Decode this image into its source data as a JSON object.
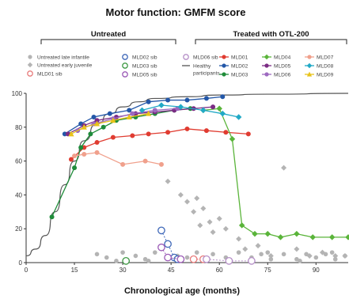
{
  "chart_data": {
    "type": "line",
    "title": "Motor function: GMFM score",
    "xlabel": "Chronological age (months)",
    "ylabel": "",
    "xlim": [
      0,
      100
    ],
    "ylim": [
      0,
      100
    ],
    "xticks": [
      0,
      15,
      30,
      45,
      60,
      75,
      90
    ],
    "yticks": [
      0,
      20,
      40,
      60,
      80,
      100
    ],
    "groups": [
      {
        "label": "Untreated",
        "x_range": [
          0,
          60
        ]
      },
      {
        "label": "Treated with OTL-200",
        "x_range": [
          61,
          100
        ]
      }
    ],
    "series": [
      {
        "name": "Untreated late infantile",
        "style": "dot",
        "color": "#b4b4b4",
        "points": [
          [
            22,
            5
          ],
          [
            25,
            3
          ],
          [
            28,
            1
          ],
          [
            30,
            6
          ],
          [
            34,
            4
          ],
          [
            37,
            2
          ],
          [
            40,
            6
          ],
          [
            44,
            12
          ],
          [
            47,
            4
          ],
          [
            50,
            3
          ],
          [
            53,
            6
          ],
          [
            56,
            2
          ],
          [
            58,
            5
          ],
          [
            62,
            3
          ],
          [
            66,
            6
          ],
          [
            70,
            3
          ],
          [
            73,
            5
          ],
          [
            76,
            2
          ],
          [
            80,
            5
          ],
          [
            84,
            2
          ],
          [
            87,
            5
          ],
          [
            90,
            3
          ],
          [
            93,
            5
          ],
          [
            96,
            2
          ],
          [
            99,
            4
          ],
          [
            38,
            1
          ],
          [
            63,
            1
          ],
          [
            75,
            6
          ],
          [
            85,
            1
          ],
          [
            95,
            6
          ]
        ]
      },
      {
        "name": "Untreated early juvenile",
        "style": "diamond",
        "color": "#b4b4b4",
        "points": [
          [
            44,
            48
          ],
          [
            48,
            40
          ],
          [
            50,
            36
          ],
          [
            52,
            30
          ],
          [
            53,
            38
          ],
          [
            54,
            22
          ],
          [
            55,
            32
          ],
          [
            57,
            24
          ],
          [
            58,
            18
          ],
          [
            60,
            26
          ],
          [
            62,
            20
          ],
          [
            66,
            14
          ],
          [
            68,
            8
          ],
          [
            72,
            10
          ],
          [
            76,
            4
          ],
          [
            80,
            56
          ],
          [
            84,
            8
          ],
          [
            88,
            4
          ],
          [
            92,
            6
          ],
          [
            96,
            4
          ],
          [
            99,
            4
          ]
        ]
      },
      {
        "name": "MLD01 sib",
        "style": "circle-open",
        "color": "#e87c7c",
        "points": [
          [
            52,
            2
          ],
          [
            55,
            2
          ]
        ]
      },
      {
        "name": "MLD02 sib",
        "style": "circle-open",
        "color": "#3f68b8",
        "points": [
          [
            42,
            19
          ],
          [
            44,
            11
          ],
          [
            46,
            3
          ],
          [
            47,
            2
          ]
        ]
      },
      {
        "name": "MLD03 sib",
        "style": "circle-open",
        "color": "#3f9a45",
        "points": [
          [
            31,
            1
          ]
        ]
      },
      {
        "name": "MLD05 sib",
        "style": "circle-open",
        "color": "#9b59b6",
        "points": [
          [
            42,
            9
          ],
          [
            44,
            3
          ],
          [
            48,
            2
          ]
        ]
      },
      {
        "name": "MLD06 sib",
        "style": "circle-open",
        "color": "#b690c8",
        "points": [
          [
            56,
            2
          ],
          [
            63,
            1
          ],
          [
            70,
            1
          ]
        ]
      },
      {
        "name": "Healthy participants",
        "style": "line",
        "color": "#555555",
        "points": [
          [
            0,
            4
          ],
          [
            3,
            8
          ],
          [
            6,
            16
          ],
          [
            9,
            30
          ],
          [
            12,
            46
          ],
          [
            15,
            60
          ],
          [
            18,
            72
          ],
          [
            22,
            82
          ],
          [
            26,
            88
          ],
          [
            30,
            92
          ],
          [
            35,
            95
          ],
          [
            40,
            97
          ],
          [
            50,
            98
          ],
          [
            60,
            99
          ],
          [
            75,
            99.5
          ],
          [
            100,
            100
          ]
        ]
      },
      {
        "name": "MLD01",
        "style": "marker-line",
        "marker": "dot",
        "color": "#e03c31",
        "points": [
          [
            14,
            61
          ],
          [
            18,
            68
          ],
          [
            22,
            71
          ],
          [
            27,
            74
          ],
          [
            33,
            75
          ],
          [
            38,
            76
          ],
          [
            44,
            77
          ],
          [
            50,
            79
          ],
          [
            56,
            78
          ],
          [
            62,
            77
          ],
          [
            69,
            76
          ]
        ]
      },
      {
        "name": "MLD02",
        "style": "marker-line",
        "marker": "dot",
        "color": "#2357a8",
        "points": [
          [
            12,
            76
          ],
          [
            17,
            82
          ],
          [
            21,
            86
          ],
          [
            26,
            88
          ],
          [
            32,
            90
          ],
          [
            38,
            95
          ],
          [
            44,
            96
          ],
          [
            50,
            96
          ],
          [
            56,
            97
          ],
          [
            61,
            98
          ]
        ]
      },
      {
        "name": "MLD03",
        "style": "marker-line",
        "marker": "dot",
        "color": "#1f8c3a",
        "points": [
          [
            8,
            27
          ],
          [
            15,
            56
          ],
          [
            17,
            68
          ],
          [
            20,
            76
          ],
          [
            24,
            80
          ],
          [
            28,
            84
          ],
          [
            34,
            86
          ],
          [
            40,
            88
          ],
          [
            46,
            90
          ],
          [
            51,
            91
          ]
        ]
      },
      {
        "name": "MLD04",
        "style": "marker-line",
        "marker": "diamond",
        "color": "#5ab43a",
        "points": [
          [
            55,
            90
          ],
          [
            60,
            91
          ],
          [
            64,
            73
          ],
          [
            67,
            22
          ],
          [
            71,
            17
          ],
          [
            75,
            17
          ],
          [
            79,
            15
          ],
          [
            84,
            17
          ],
          [
            89,
            15
          ],
          [
            95,
            15
          ],
          [
            100,
            15
          ]
        ]
      },
      {
        "name": "MLD05",
        "style": "marker-line",
        "marker": "dot",
        "color": "#7b2c84",
        "points": [
          [
            13,
            76
          ],
          [
            18,
            81
          ],
          [
            22,
            84
          ],
          [
            28,
            86
          ],
          [
            34,
            88
          ],
          [
            40,
            89
          ],
          [
            46,
            90
          ],
          [
            52,
            91
          ],
          [
            58,
            92
          ]
        ]
      },
      {
        "name": "MLD06",
        "style": "marker-line",
        "marker": "dot",
        "color": "#9d6ac0",
        "points": [
          [
            16,
            78
          ],
          [
            21,
            82
          ],
          [
            27,
            85
          ],
          [
            33,
            88
          ],
          [
            40,
            90
          ],
          [
            47,
            91
          ]
        ]
      },
      {
        "name": "MLD07",
        "style": "marker-line",
        "marker": "dot",
        "color": "#f0a08c",
        "points": [
          [
            15,
            63
          ],
          [
            18,
            64
          ],
          [
            22,
            65
          ],
          [
            30,
            58
          ],
          [
            37,
            60
          ],
          [
            42,
            58
          ]
        ]
      },
      {
        "name": "MLD08",
        "style": "marker-line",
        "marker": "diamond",
        "color": "#21a9c6",
        "points": [
          [
            36,
            90
          ],
          [
            42,
            93
          ],
          [
            48,
            92
          ],
          [
            55,
            90
          ],
          [
            61,
            88
          ],
          [
            66,
            86
          ]
        ]
      },
      {
        "name": "MLD09",
        "style": "marker-line",
        "marker": "triangle",
        "color": "#e8c31a",
        "points": [
          [
            14,
            76
          ],
          [
            18,
            80
          ],
          [
            22,
            82
          ],
          [
            27,
            84
          ],
          [
            32,
            86
          ],
          [
            38,
            88
          ]
        ]
      }
    ],
    "legend": {
      "placement": "top",
      "untreated": [
        "Untreated late infantile",
        "Untreated early juvenile",
        "MLD01 sib",
        "MLD02 sib",
        "MLD03 sib",
        "MLD05 sib",
        "MLD06 sib",
        "Healthy participants"
      ],
      "treated": [
        "MLD01",
        "MLD02",
        "MLD03",
        "MLD04",
        "MLD05",
        "MLD06",
        "MLD07",
        "MLD08",
        "MLD09"
      ]
    },
    "grid": false
  }
}
